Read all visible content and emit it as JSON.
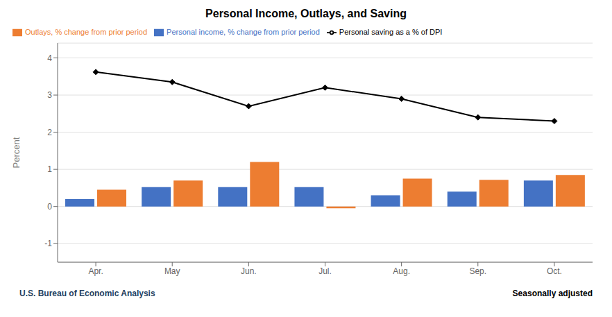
{
  "chart_data": {
    "type": "bar",
    "title": "Personal Income, Outlays, and Saving",
    "categories": [
      "Apr.",
      "May",
      "Jun.",
      "Jul.",
      "Aug.",
      "Sep.",
      "Oct."
    ],
    "series": [
      {
        "name": "Personal income, % change from prior period",
        "type": "bar",
        "color": "#4472C4",
        "values": [
          0.2,
          0.52,
          0.52,
          0.52,
          0.3,
          0.4,
          0.7
        ]
      },
      {
        "name": "Outlays, % change from prior period",
        "type": "bar",
        "color": "#ED7D31",
        "values": [
          0.45,
          0.7,
          1.2,
          -0.05,
          0.75,
          0.72,
          0.85
        ]
      },
      {
        "name": "Personal saving as a % of DPI",
        "type": "line",
        "color": "#000000",
        "marker": "diamond",
        "values": [
          3.62,
          3.35,
          2.7,
          3.2,
          2.9,
          2.4,
          2.3
        ]
      }
    ],
    "ylabel": "Percent",
    "ylim": [
      -1.5,
      4.4
    ],
    "yticks": [
      -1,
      0,
      1,
      2,
      3,
      4
    ],
    "grid": true,
    "legend": "upper left",
    "annotations": [
      {
        "text": "U.S. Bureau of Economic Analysis",
        "color": "#243F60"
      },
      {
        "text": "Seasonally adjusted",
        "color": "#000000"
      }
    ]
  }
}
